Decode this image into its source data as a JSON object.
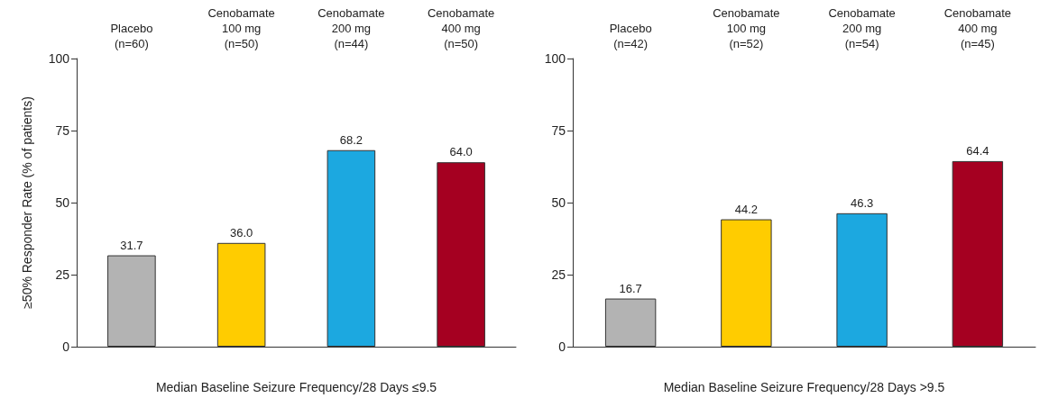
{
  "chart_data": [
    {
      "type": "bar",
      "ylabel": "≥50% Responder Rate (% of patients)",
      "xlabel": "Median Baseline Seizure Frequency/28 Days ≤9.5",
      "categories": [
        "Placebo\n(n=60)",
        "Cenobamate\n100 mg\n(n=50)",
        "Cenobamate\n200 mg\n(n=44)",
        "Cenobamate\n400 mg\n(n=50)"
      ],
      "values": [
        31.7,
        36.0,
        68.2,
        64.0
      ],
      "colors": [
        "#b3b3b3",
        "#ffcc00",
        "#1ca8e0",
        "#a50021"
      ],
      "value_labels": [
        "31.7",
        "36.0",
        "68.2",
        "64.0"
      ],
      "ylim": [
        0,
        100
      ],
      "yticks": [
        0,
        25,
        50,
        75,
        100
      ],
      "grid": false
    },
    {
      "type": "bar",
      "xlabel": "Median Baseline Seizure Frequency/28 Days >9.5",
      "categories": [
        "Placebo\n(n=42)",
        "Cenobamate\n100 mg\n(n=52)",
        "Cenobamate\n200 mg\n(n=54)",
        "Cenobamate\n400 mg\n(n=45)"
      ],
      "values": [
        16.7,
        44.2,
        46.3,
        64.4
      ],
      "colors": [
        "#b3b3b3",
        "#ffcc00",
        "#1ca8e0",
        "#a50021"
      ],
      "value_labels": [
        "16.7",
        "44.2",
        "46.3",
        "64.4"
      ],
      "ylim": [
        0,
        100
      ],
      "yticks": [
        0,
        25,
        50,
        75,
        100
      ],
      "grid": false
    }
  ]
}
